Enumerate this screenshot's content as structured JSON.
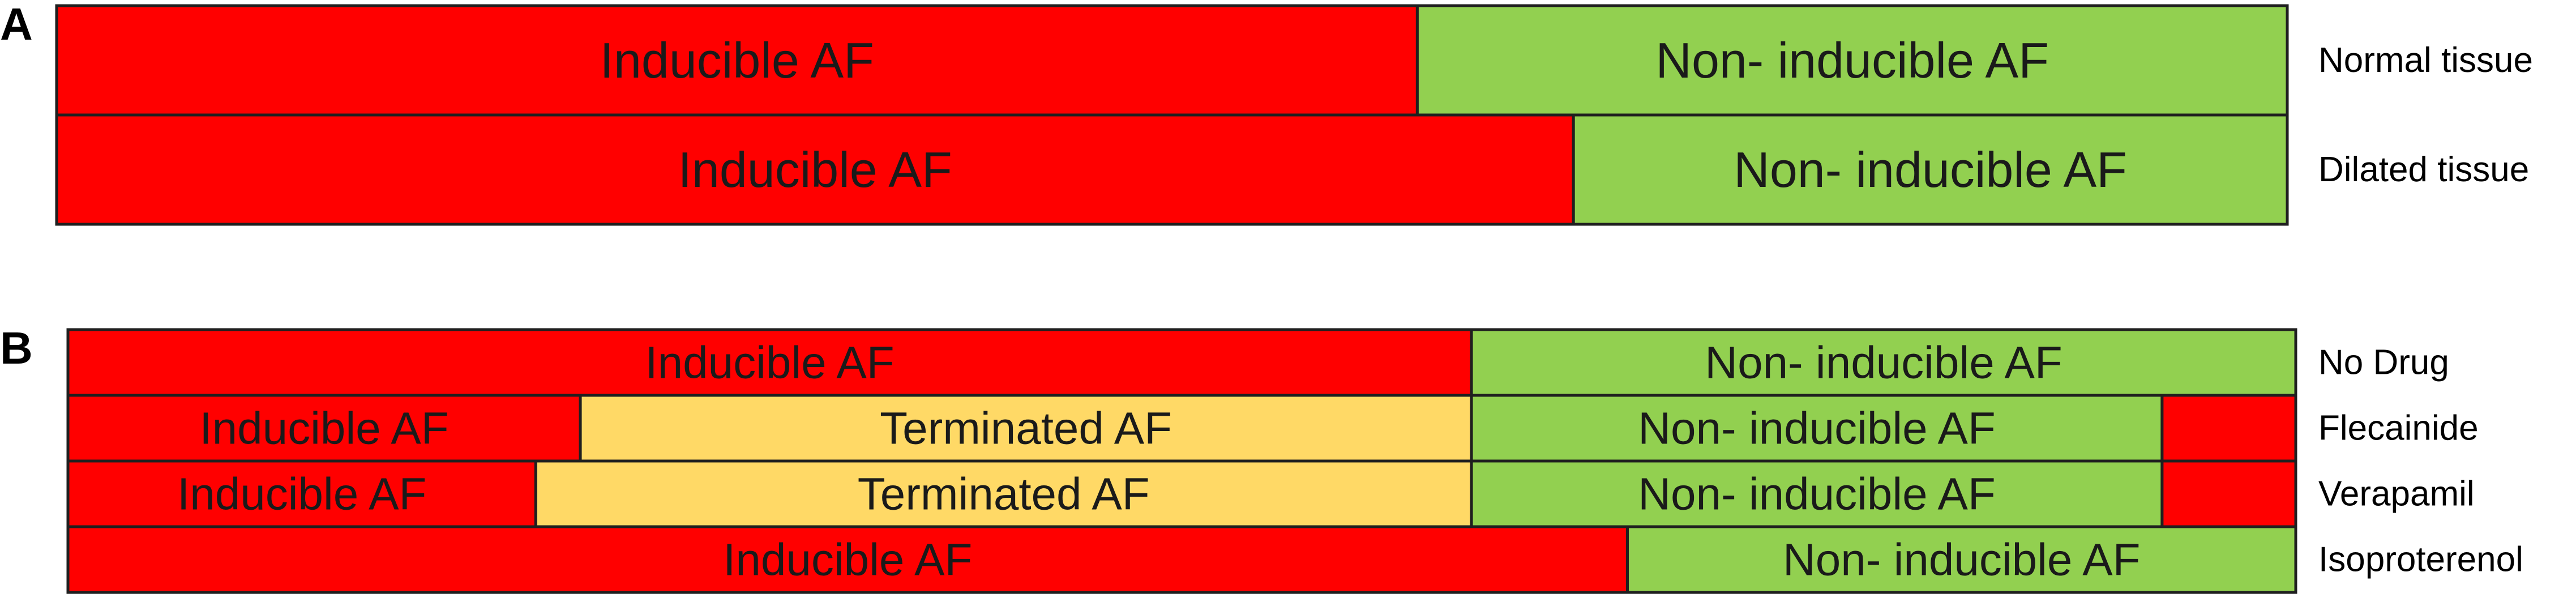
{
  "colors": {
    "inducible": "#ff0000",
    "non_inducible": "#92d050",
    "terminated": "#ffd966",
    "border": "#1f1f1f"
  },
  "chart_data": [
    {
      "type": "bar",
      "orientation": "horizontal",
      "stacked": true,
      "panel": "A",
      "rows": [
        {
          "label": "Normal tissue",
          "segments": [
            {
              "category": "inducible",
              "label": "Inducible AF",
              "value": 61
            },
            {
              "category": "non_inducible",
              "label": "Non- inducible AF",
              "value": 39
            }
          ]
        },
        {
          "label": "Dilated tissue",
          "segments": [
            {
              "category": "inducible",
              "label": "Inducible AF",
              "value": 68
            },
            {
              "category": "non_inducible",
              "label": "Non- inducible AF",
              "value": 32
            }
          ]
        }
      ]
    },
    {
      "type": "bar",
      "orientation": "horizontal",
      "stacked": true,
      "panel": "B",
      "rows": [
        {
          "label": "No Drug",
          "segments": [
            {
              "category": "inducible",
              "label": "Inducible AF",
              "value": 63
            },
            {
              "category": "non_inducible",
              "label": "Non- inducible AF",
              "value": 37
            }
          ]
        },
        {
          "label": "Flecainide",
          "segments": [
            {
              "category": "inducible",
              "label": "Inducible AF",
              "value": 23
            },
            {
              "category": "terminated",
              "label": "Terminated AF",
              "value": 40
            },
            {
              "category": "non_inducible",
              "label": "Non- inducible AF",
              "value": 31
            },
            {
              "category": "inducible",
              "label": "",
              "value": 6
            }
          ]
        },
        {
          "label": "Verapamil",
          "segments": [
            {
              "category": "inducible",
              "label": "Inducible AF",
              "value": 21
            },
            {
              "category": "terminated",
              "label": "Terminated AF",
              "value": 42
            },
            {
              "category": "non_inducible",
              "label": "Non- inducible AF",
              "value": 31
            },
            {
              "category": "inducible",
              "label": "",
              "value": 6
            }
          ]
        },
        {
          "label": "Isoproterenol",
          "segments": [
            {
              "category": "inducible",
              "label": "Inducible AF",
              "value": 70
            },
            {
              "category": "non_inducible",
              "label": "Non- inducible AF",
              "value": 30
            }
          ]
        }
      ]
    }
  ]
}
